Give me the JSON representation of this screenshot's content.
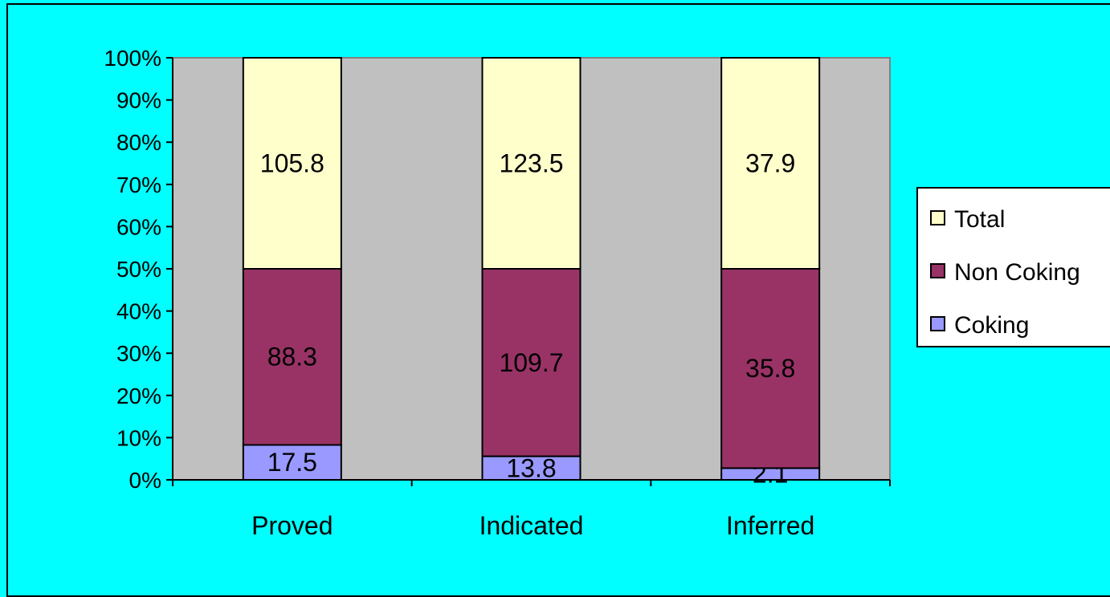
{
  "chart_data": {
    "type": "bar",
    "stacked": "percent",
    "categories": [
      "Proved",
      "Indicated",
      "Inferred"
    ],
    "series": [
      {
        "name": "Coking",
        "values": [
          17.5,
          13.8,
          2.1
        ],
        "color": "#9999FF"
      },
      {
        "name": "Non Coking",
        "values": [
          88.3,
          109.7,
          35.8
        ],
        "color": "#993366"
      },
      {
        "name": "Total",
        "values": [
          105.8,
          123.5,
          37.9
        ],
        "color": "#FFFFCC"
      }
    ],
    "y_ticks": [
      "0%",
      "10%",
      "20%",
      "30%",
      "40%",
      "50%",
      "60%",
      "70%",
      "80%",
      "90%",
      "100%"
    ],
    "ylim": [
      0,
      100
    ],
    "legend_position": "right",
    "plot_background": "#C0C0C0",
    "page_background": "#00FFFF"
  }
}
